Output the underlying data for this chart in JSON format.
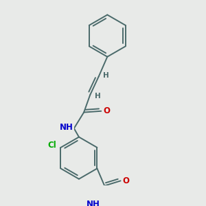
{
  "bg_color": "#e8eae8",
  "bond_color": "#4a6a6a",
  "atom_colors": {
    "N": "#0000cc",
    "O": "#cc0000",
    "Cl": "#00aa00",
    "H": "#4a6a6a",
    "C": "#4a6a6a"
  },
  "bond_width": 1.4,
  "font_size": 8.5,
  "figsize": [
    3.0,
    3.0
  ],
  "dpi": 100
}
